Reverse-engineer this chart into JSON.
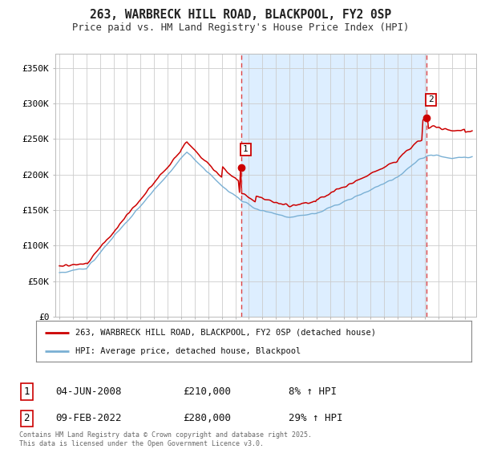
{
  "title": "263, WARBRECK HILL ROAD, BLACKPOOL, FY2 0SP",
  "subtitle": "Price paid vs. HM Land Registry's House Price Index (HPI)",
  "background_color": "#ffffff",
  "grid_color": "#cccccc",
  "ylim": [
    0,
    370000
  ],
  "yticks": [
    0,
    50000,
    100000,
    150000,
    200000,
    250000,
    300000,
    350000
  ],
  "xlim_start": 1994.7,
  "xlim_end": 2025.8,
  "red_line_color": "#cc0000",
  "blue_line_color": "#7ab0d4",
  "vline_color": "#dd4444",
  "shade_color": "#ddeeff",
  "marker1_date": 2008.42,
  "marker2_date": 2022.1,
  "marker1_price": 210000,
  "marker2_price": 280000,
  "annotation1_label": "1",
  "annotation2_label": "2",
  "legend_label_red": "263, WARBRECK HILL ROAD, BLACKPOOL, FY2 0SP (detached house)",
  "legend_label_blue": "HPI: Average price, detached house, Blackpool",
  "box1_text": "04-JUN-2008",
  "box1_price": "£210,000",
  "box1_hpi": "8% ↑ HPI",
  "box2_text": "09-FEB-2022",
  "box2_price": "£280,000",
  "box2_hpi": "29% ↑ HPI",
  "footer": "Contains HM Land Registry data © Crown copyright and database right 2025.\nThis data is licensed under the Open Government Licence v3.0."
}
